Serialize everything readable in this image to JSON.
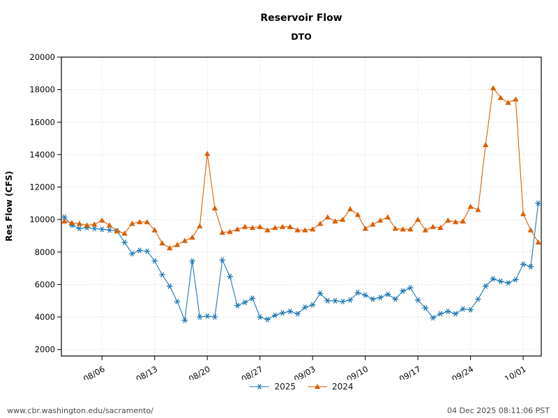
{
  "header": {
    "title": "Reservoir Flow",
    "subtitle": "DTO"
  },
  "chart_data": {
    "type": "line",
    "title": "Reservoir Flow",
    "subtitle": "DTO",
    "ylabel": "Res Flow (CFS)",
    "xlabel": "",
    "ylim": [
      1600,
      20000
    ],
    "yticks": [
      2000,
      4000,
      6000,
      8000,
      10000,
      12000,
      14000,
      16000,
      18000,
      20000
    ],
    "grid": true,
    "legend_position": "bottom-center",
    "x": [
      "08/01",
      "08/02",
      "08/03",
      "08/04",
      "08/05",
      "08/06",
      "08/07",
      "08/08",
      "08/09",
      "08/10",
      "08/11",
      "08/12",
      "08/13",
      "08/14",
      "08/15",
      "08/16",
      "08/17",
      "08/18",
      "08/19",
      "08/20",
      "08/21",
      "08/22",
      "08/23",
      "08/24",
      "08/25",
      "08/26",
      "08/27",
      "08/28",
      "08/29",
      "08/30",
      "08/31",
      "09/01",
      "09/02",
      "09/03",
      "09/04",
      "09/05",
      "09/06",
      "09/07",
      "09/08",
      "09/09",
      "09/10",
      "09/11",
      "09/12",
      "09/13",
      "09/14",
      "09/15",
      "09/16",
      "09/17",
      "09/18",
      "09/19",
      "09/20",
      "09/21",
      "09/22",
      "09/23",
      "09/24",
      "09/25",
      "09/26",
      "09/27",
      "09/28",
      "09/29",
      "09/30",
      "10/01",
      "10/02",
      "10/03"
    ],
    "xtick_labels": [
      "08/06",
      "08/13",
      "08/20",
      "08/27",
      "09/03",
      "09/10",
      "09/17",
      "09/24",
      "10/01"
    ],
    "series": [
      {
        "name": "2025",
        "color": "#1f77b4",
        "marker": "star",
        "values": [
          10150,
          9650,
          9450,
          9500,
          9450,
          9400,
          9350,
          9300,
          8600,
          7900,
          8100,
          8050,
          7450,
          6600,
          5900,
          4950,
          3800,
          7450,
          4000,
          4050,
          4000,
          7500,
          6500,
          4700,
          4900,
          5150,
          4000,
          3850,
          4100,
          4250,
          4350,
          4200,
          4600,
          4750,
          5450,
          5000,
          5000,
          4950,
          5050,
          5500,
          5350,
          5100,
          5200,
          5400,
          5100,
          5600,
          5800,
          5050,
          4550,
          3950,
          4200,
          4350,
          4200,
          4500,
          4450,
          5100,
          5900,
          6350,
          6200,
          6100,
          6300,
          7250,
          7100,
          11000
        ]
      },
      {
        "name": "2024",
        "color": "#d95f02",
        "marker": "triangle",
        "values": [
          9900,
          9800,
          9750,
          9650,
          9700,
          9950,
          9650,
          9300,
          9150,
          9750,
          9850,
          9850,
          9350,
          8550,
          8250,
          8450,
          8700,
          8900,
          9600,
          14050,
          10700,
          9200,
          9250,
          9400,
          9550,
          9500,
          9550,
          9350,
          9500,
          9550,
          9550,
          9350,
          9350,
          9400,
          9750,
          10150,
          9900,
          10000,
          10650,
          10300,
          9450,
          9700,
          9950,
          10150,
          9450,
          9400,
          9400,
          10000,
          9350,
          9550,
          9500,
          9950,
          9850,
          9900,
          10800,
          10600,
          14600,
          18100,
          17500,
          17200,
          17400,
          10350,
          9350,
          8600
        ]
      }
    ]
  },
  "footer": {
    "url": "www.cbr.washington.edu/sacramento/",
    "timestamp": "04 Dec 2025 08:11:06 PST"
  }
}
